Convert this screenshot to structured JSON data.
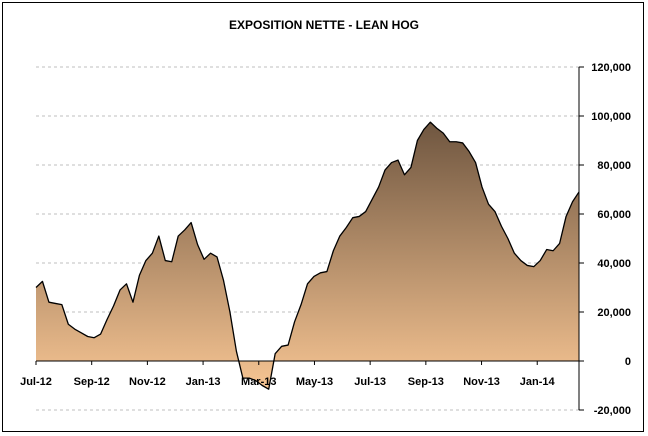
{
  "chart_data": {
    "type": "area",
    "title": "EXPOSITION NETTE - LEAN HOG",
    "xlabel": "",
    "ylabel": "",
    "ylim": [
      -20000,
      120000
    ],
    "yticks": [
      -20000,
      0,
      20000,
      40000,
      60000,
      80000,
      100000,
      120000
    ],
    "ytick_labels": [
      "-20,000",
      "0",
      "20,000",
      "40,000",
      "60,000",
      "80,000",
      "100,000",
      "120,000"
    ],
    "xticks": [
      "Jul-12",
      "Sep-12",
      "Nov-12",
      "Jan-13",
      "Mar-13",
      "May-13",
      "Jul-13",
      "Sep-13",
      "Nov-13",
      "Jan-14"
    ],
    "grid": true,
    "legend": "none",
    "colors": {
      "fill_top": "#6f5640",
      "fill_bottom": "#f7c593",
      "line": "#000000",
      "grid": "#bfbfbf"
    },
    "series": [
      {
        "values": [
          30000,
          32500,
          24000,
          23500,
          23000,
          15000,
          13000,
          11500,
          10000,
          9500,
          11000,
          17000,
          22500,
          29000,
          31500,
          24000,
          35000,
          41000,
          44000,
          51000,
          41000,
          40500,
          51000,
          53500,
          56500,
          47500,
          41500,
          44000,
          42500,
          33000,
          20000,
          4000,
          -7000,
          -7000,
          -8000,
          -10000,
          -11500,
          3000,
          6000,
          6500,
          16000,
          23000,
          31500,
          34500,
          36000,
          36500,
          45000,
          51000,
          54500,
          58500,
          59000,
          61000,
          66000,
          71000,
          78000,
          81000,
          82000,
          76000,
          79000,
          90000,
          94500,
          97500,
          95000,
          93000,
          89500,
          89500,
          89000,
          85500,
          81000,
          71000,
          64000,
          61000,
          55000,
          50000,
          44000,
          41000,
          39000,
          38500,
          41000,
          45500,
          45000,
          48000,
          59000,
          65000,
          69000
        ]
      }
    ]
  }
}
